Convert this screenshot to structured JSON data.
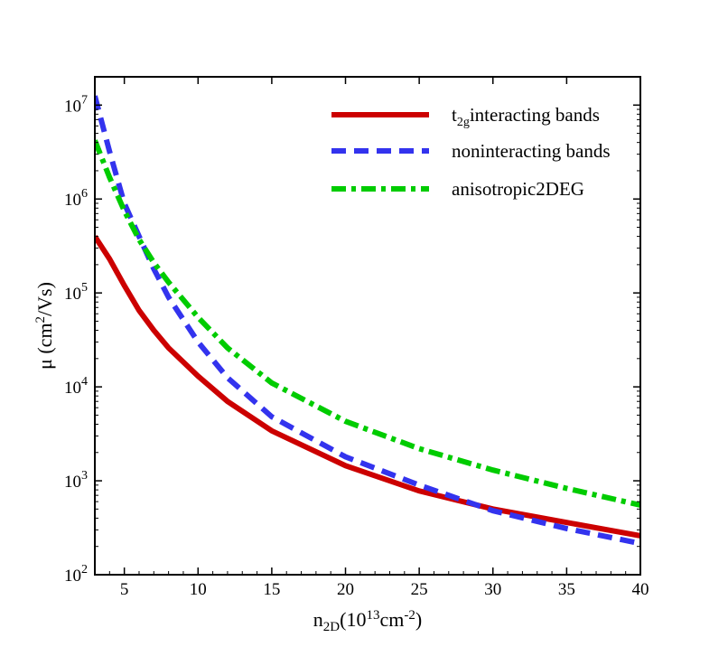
{
  "chart_data": {
    "type": "line",
    "title": "",
    "xlabel": {
      "main": "n",
      "sub": "2D",
      "rest": "(10",
      "sup": "13",
      "unit": "cm",
      "unit_sup": "-2",
      "close": ")"
    },
    "ylabel": {
      "main": "μ (cm",
      "sup": "2",
      "rest": "/Vs)"
    },
    "xlim": [
      3,
      40
    ],
    "ylim": [
      100,
      20000000
    ],
    "yscale": "log",
    "xticks": [
      5,
      10,
      15,
      20,
      25,
      30,
      35,
      40
    ],
    "yticks": [
      {
        "value": 100,
        "base": "10",
        "exp": "2"
      },
      {
        "value": 1000,
        "base": "10",
        "exp": "3"
      },
      {
        "value": 10000,
        "base": "10",
        "exp": "4"
      },
      {
        "value": 100000,
        "base": "10",
        "exp": "5"
      },
      {
        "value": 1000000,
        "base": "10",
        "exp": "6"
      },
      {
        "value": 10000000,
        "base": "10",
        "exp": "7"
      }
    ],
    "grid": false,
    "legend_position": "top-right",
    "series": [
      {
        "name": "t2g interacting bands",
        "label_main": "t",
        "label_sub": "2g",
        "label_rest": "interacting bands",
        "color": "#cc0000",
        "style": "solid",
        "x": [
          3,
          4,
          5,
          6,
          7,
          8,
          10,
          12,
          15,
          20,
          25,
          30,
          35,
          40
        ],
        "y": [
          400000,
          230000,
          120000,
          65000,
          40000,
          26000,
          13000,
          7000,
          3400,
          1450,
          780,
          500,
          360,
          260
        ]
      },
      {
        "name": "noninteracting bands",
        "label_main": "noninteracting bands",
        "label_sub": "",
        "label_rest": "",
        "color": "#3333ee",
        "style": "dashed",
        "x": [
          3,
          4,
          5,
          6,
          7,
          8,
          10,
          12,
          15,
          20,
          25,
          30,
          35,
          40
        ],
        "y": [
          12500000,
          3200000,
          900000,
          400000,
          180000,
          90000,
          30000,
          12500,
          4800,
          1800,
          900,
          480,
          310,
          215
        ]
      },
      {
        "name": "anisotropic2DEG",
        "label_main": "anisotropic2DEG",
        "label_sub": "",
        "label_rest": "",
        "color": "#00cc00",
        "style": "dashdot",
        "x": [
          3,
          4,
          5,
          6,
          7,
          8,
          10,
          12,
          15,
          20,
          25,
          30,
          35,
          40
        ],
        "y": [
          4200000,
          1700000,
          750000,
          370000,
          210000,
          130000,
          55000,
          26000,
          11000,
          4300,
          2200,
          1300,
          830,
          550
        ]
      }
    ]
  }
}
